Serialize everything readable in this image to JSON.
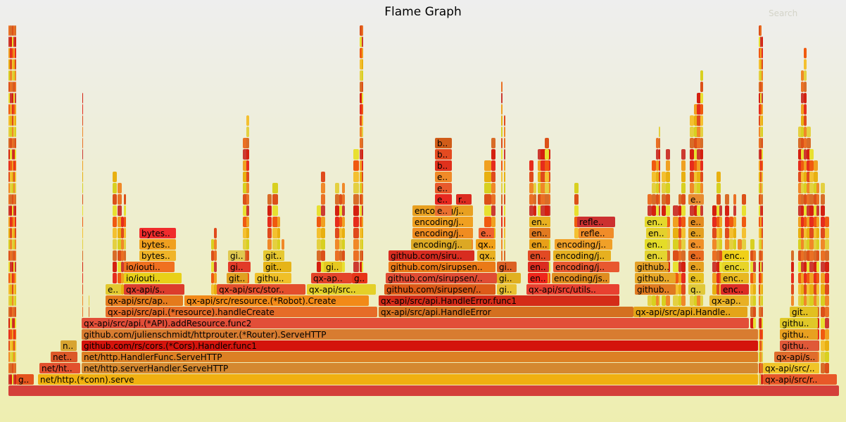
{
  "title": "Flame Graph",
  "search_label": "Search",
  "palette": [
    "#d42010",
    "#e04a1c",
    "#ea7024",
    "#f0a020",
    "#d8d020",
    "#e8e030",
    "#f4c030",
    "#d86c28",
    "#e62c1c",
    "#f08828",
    "#cc3a30",
    "#e8b010",
    "#dc5018",
    "#f05a10",
    "#e4d040"
  ],
  "frames": [
    {
      "name": "",
      "row": 0,
      "color": "#d4403a"
    },
    {
      "name": "g..",
      "row": 1,
      "color": "#e4541c"
    },
    {
      "name": "net/http.(*conn).serve",
      "row": 1,
      "color": "#f0b010"
    },
    {
      "name": "",
      "row": 1,
      "color": "#e2c848"
    },
    {
      "name": "qx-api/src/r..",
      "row": 1,
      "color": "#e85828"
    },
    {
      "name": "net/ht..",
      "row": 2,
      "color": "#e2502e"
    },
    {
      "name": "net/http.serverHandler.ServeHTTP",
      "row": 2,
      "color": "#d48830"
    },
    {
      "name": "qx-api/src/..",
      "row": 2,
      "color": "#f0c428"
    },
    {
      "name": "net..",
      "row": 3,
      "color": "#dc5828"
    },
    {
      "name": "net/http.HandlerFunc.ServeHTTP",
      "row": 3,
      "color": "#dc8024"
    },
    {
      "name": "qx-api/s..",
      "row": 3,
      "color": "#e06c2c"
    },
    {
      "name": "n..",
      "row": 4,
      "color": "#d8a430"
    },
    {
      "name": "github.com/rs/cors.(*Cors).Handler.func1",
      "row": 4,
      "color": "#d4140c"
    },
    {
      "name": "githu..",
      "row": 4,
      "color": "#e05838"
    },
    {
      "name": "github.com/julienschmidt/httprouter.(*Router).ServeHTTP",
      "row": 5,
      "color": "#d87c30"
    },
    {
      "name": "githu..",
      "row": 5,
      "color": "#e8a020"
    },
    {
      "name": "qx-api/src/api.(*API).addResource.func2",
      "row": 6,
      "color": "#e24e38"
    },
    {
      "name": "githu..",
      "row": 6,
      "color": "#e0c828"
    },
    {
      "name": "qx-api/src/api.(*resource).handleCreate",
      "row": 7,
      "color": "#e66c28"
    },
    {
      "name": "qx-api/src/api.HandleError",
      "row": 7,
      "color": "#d47020"
    },
    {
      "name": "qx-api/src/api.Handle..",
      "row": 7,
      "color": "#e4a418"
    },
    {
      "name": "git..",
      "row": 7,
      "color": "#e2c020"
    },
    {
      "name": "qx-api/src/ap..",
      "row": 8,
      "color": "#e47a1c"
    },
    {
      "name": "qx-api/src/resource.(*Robot).Create",
      "row": 8,
      "color": "#f28a18"
    },
    {
      "name": "qx-api/src/api.HandleError.func1",
      "row": 8,
      "color": "#d42c18"
    },
    {
      "name": "qx-ap..",
      "row": 8,
      "color": "#e8b024"
    },
    {
      "name": "e..",
      "row": 9,
      "color": "#e2c830"
    },
    {
      "name": "qx-api/s..",
      "row": 9,
      "color": "#dc3c2c"
    },
    {
      "name": "qx-api/src/stor..",
      "row": 9,
      "color": "#e44e2c"
    },
    {
      "name": "qx-api/src..",
      "row": 9,
      "color": "#e4d028"
    },
    {
      "name": "github.com/sirupsen/..",
      "row": 9,
      "color": "#dc5a18"
    },
    {
      "name": "gi..",
      "row": 9,
      "color": "#e8c030"
    },
    {
      "name": "qx-api/src/utils..",
      "row": 9,
      "color": "#e84030"
    },
    {
      "name": "github..",
      "row": 9,
      "color": "#e07a20"
    },
    {
      "name": "q..",
      "row": 9,
      "color": "#e0c838"
    },
    {
      "name": "enc..",
      "row": 9,
      "color": "#dc2c24"
    },
    {
      "name": "io/iouti..",
      "row": 10,
      "color": "#e8d018"
    },
    {
      "name": "git..",
      "row": 10,
      "color": "#e0a020"
    },
    {
      "name": "githu..",
      "row": 10,
      "color": "#f0c028"
    },
    {
      "name": "qx-ap..",
      "row": 10,
      "color": "#e4442a"
    },
    {
      "name": "g..",
      "row": 10,
      "color": "#e83418"
    },
    {
      "name": "github.com/sirupsen/..",
      "row": 10,
      "color": "#e04c34"
    },
    {
      "name": "gi..",
      "row": 10,
      "color": "#e0b020"
    },
    {
      "name": "en..",
      "row": 10,
      "color": "#f0261c"
    },
    {
      "name": "encoding/js..",
      "row": 10,
      "color": "#e08c20"
    },
    {
      "name": "github..",
      "row": 10,
      "color": "#e8a828"
    },
    {
      "name": "e..",
      "row": 10,
      "color": "#e8c020"
    },
    {
      "name": "enc..",
      "row": 10,
      "color": "#e8b820"
    },
    {
      "name": "io/iouti..",
      "row": 11,
      "color": "#f07020"
    },
    {
      "name": "gi..",
      "row": 11,
      "color": "#e23a28"
    },
    {
      "name": "git..",
      "row": 11,
      "color": "#e6b418"
    },
    {
      "name": "gi..",
      "row": 11,
      "color": "#e6c820"
    },
    {
      "name": "github.com/sirupsen..",
      "row": 11,
      "color": "#ea7a18"
    },
    {
      "name": "gi..",
      "row": 11,
      "color": "#dc6024"
    },
    {
      "name": "en..",
      "row": 11,
      "color": "#dc2c20"
    },
    {
      "name": "encoding/j..",
      "row": 11,
      "color": "#e85830"
    },
    {
      "name": "github..",
      "row": 11,
      "color": "#e4a028"
    },
    {
      "name": "e..",
      "row": 11,
      "color": "#e6a020"
    },
    {
      "name": "enc..",
      "row": 11,
      "color": "#e8d428"
    },
    {
      "name": "bytes..",
      "row": 12,
      "color": "#f0b428"
    },
    {
      "name": "gi..",
      "row": 12,
      "color": "#e0c850"
    },
    {
      "name": "git..",
      "row": 12,
      "color": "#e6c830"
    },
    {
      "name": "github.com/siru..",
      "row": 12,
      "color": "#d82c20"
    },
    {
      "name": "qx..",
      "row": 12,
      "color": "#e8b020"
    },
    {
      "name": "en..",
      "row": 12,
      "color": "#e24a24"
    },
    {
      "name": "encoding/j..",
      "row": 12,
      "color": "#e6b020"
    },
    {
      "name": "en..",
      "row": 12,
      "color": "#e4d430"
    },
    {
      "name": "e..",
      "row": 12,
      "color": "#e86a20"
    },
    {
      "name": "enc..",
      "row": 12,
      "color": "#f0d018"
    },
    {
      "name": "bytes..",
      "row": 13,
      "color": "#f0a020"
    },
    {
      "name": "encoding/j..",
      "row": 13,
      "color": "#dca824"
    },
    {
      "name": "qx..",
      "row": 13,
      "color": "#f0a018"
    },
    {
      "name": "en..",
      "row": 13,
      "color": "#e8a018"
    },
    {
      "name": "encoding/j..",
      "row": 13,
      "color": "#f0a028"
    },
    {
      "name": "en..",
      "row": 13,
      "color": "#e4dc28"
    },
    {
      "name": "e..",
      "row": 13,
      "color": "#f09028"
    },
    {
      "name": "bytes..",
      "row": 14,
      "color": "#f02c2c"
    },
    {
      "name": "encoding/j..",
      "row": 14,
      "color": "#f08c20"
    },
    {
      "name": "e..",
      "row": 14,
      "color": "#f06030"
    },
    {
      "name": "en..",
      "row": 14,
      "color": "#e07a20"
    },
    {
      "name": "refle..",
      "row": 14,
      "color": "#f08c28"
    },
    {
      "name": "en..",
      "row": 14,
      "color": "#e4d02c"
    },
    {
      "name": "e..",
      "row": 14,
      "color": "#e4a020"
    },
    {
      "name": "encoding/j..",
      "row": 15,
      "color": "#f0a020"
    },
    {
      "name": "en..",
      "row": 15,
      "color": "#e8b020"
    },
    {
      "name": "refle..",
      "row": 15,
      "color": "#cc3030"
    },
    {
      "name": "en..",
      "row": 15,
      "color": "#e4d82c"
    },
    {
      "name": "e..",
      "row": 15,
      "color": "#e48c20"
    },
    {
      "name": "encoding/j..",
      "row": 16,
      "color": "#e8a020"
    },
    {
      "name": "e..",
      "row": 16,
      "color": "#ea7030"
    },
    {
      "name": "e..",
      "row": 17,
      "color": "#e82820"
    },
    {
      "name": "r..",
      "row": 17,
      "color": "#dc2c20"
    },
    {
      "name": "e..",
      "row": 17,
      "color": "#e88c30"
    },
    {
      "name": "e..",
      "row": 18,
      "color": "#e85a2c"
    },
    {
      "name": "e..",
      "row": 19,
      "color": "#f08a28"
    },
    {
      "name": "b..",
      "row": 20,
      "color": "#e0301c"
    },
    {
      "name": "b..",
      "row": 21,
      "color": "#e44a20"
    },
    {
      "name": "b..",
      "row": 22,
      "color": "#d05c18"
    }
  ]
}
